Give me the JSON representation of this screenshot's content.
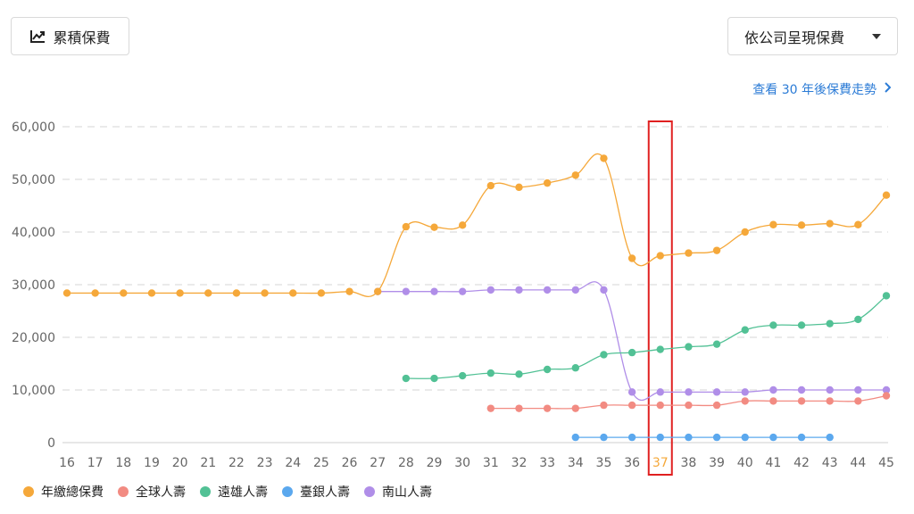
{
  "header": {
    "left_button": {
      "label": "累積保費",
      "icon": "trend-line-icon"
    },
    "select": {
      "value": "依公司呈現保費"
    },
    "link": {
      "label": "查看 30 年後保費走勢",
      "icon": "chevron-right-icon"
    }
  },
  "chart_data": {
    "type": "line",
    "x": [
      16,
      17,
      18,
      19,
      20,
      21,
      22,
      23,
      24,
      25,
      26,
      27,
      28,
      29,
      30,
      31,
      32,
      33,
      34,
      35,
      36,
      37,
      38,
      39,
      40,
      41,
      42,
      43,
      44,
      45
    ],
    "highlight_x": 37,
    "ylim": [
      0,
      60000
    ],
    "yticks": [
      0,
      10000,
      20000,
      30000,
      40000,
      50000,
      60000
    ],
    "ytick_labels": [
      "0",
      "10,000",
      "20,000",
      "30,000",
      "40,000",
      "50,000",
      "60,000"
    ],
    "grid": true,
    "series": [
      {
        "name": "年繳總保費",
        "color": "#f5a83a",
        "values": [
          28400,
          28400,
          28400,
          28400,
          28400,
          28400,
          28400,
          28400,
          28400,
          28400,
          28700,
          28700,
          41000,
          40900,
          41300,
          48800,
          48500,
          49300,
          50800,
          54000,
          35000,
          35500,
          36000,
          36500,
          40000,
          41400,
          41300,
          41600,
          41400,
          47000
        ]
      },
      {
        "name": "全球人壽",
        "color": "#f28b82",
        "values": [
          null,
          null,
          null,
          null,
          null,
          null,
          null,
          null,
          null,
          null,
          null,
          null,
          null,
          null,
          null,
          6500,
          6500,
          6500,
          6500,
          7100,
          7100,
          7100,
          7100,
          7100,
          7900,
          7900,
          7900,
          7900,
          7900,
          8900
        ]
      },
      {
        "name": "遠雄人壽",
        "color": "#52c195",
        "values": [
          null,
          null,
          null,
          null,
          null,
          null,
          null,
          null,
          null,
          null,
          null,
          null,
          12200,
          12200,
          12700,
          13200,
          13000,
          13900,
          14200,
          16700,
          17100,
          17700,
          18200,
          18700,
          21400,
          22300,
          22300,
          22600,
          23400,
          27900
        ]
      },
      {
        "name": "臺銀人壽",
        "color": "#5ba8ee",
        "values": [
          null,
          null,
          null,
          null,
          null,
          null,
          null,
          null,
          null,
          null,
          null,
          null,
          null,
          null,
          null,
          null,
          null,
          null,
          1000,
          1000,
          1000,
          1000,
          1000,
          1000,
          1000,
          1000,
          1000,
          1000,
          null,
          null
        ]
      },
      {
        "name": "南山人壽",
        "color": "#b08ee8",
        "values": [
          null,
          null,
          null,
          null,
          null,
          null,
          null,
          null,
          null,
          null,
          null,
          28700,
          28700,
          28700,
          28700,
          29000,
          29000,
          29000,
          29000,
          29000,
          9600,
          9600,
          9600,
          9600,
          9600,
          10000,
          10000,
          10000,
          10000,
          10000
        ]
      }
    ]
  }
}
